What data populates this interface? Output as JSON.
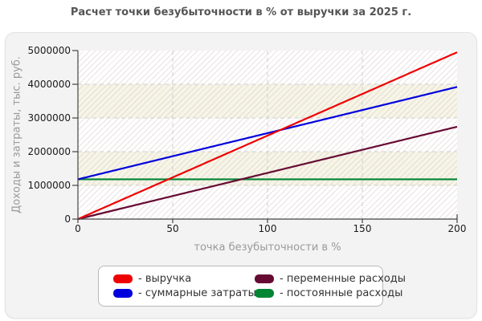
{
  "page": {
    "title": "Расчет точки безубыточности в % от выручки за 2025 г."
  },
  "colors": {
    "revenue": "#ee0000",
    "total_costs": "#0000dd",
    "variable_costs": "#660a33",
    "fixed_costs": "#008533",
    "gridline": "#cfcfcf",
    "axis": "#444444",
    "panel_bg": "#f3f3f3",
    "band_cream": "#f6f5e6",
    "title_text": "#555555",
    "axis_title_text": "#9a9a9a"
  },
  "chart_data": {
    "type": "line",
    "title": "Расчет точки безубыточности в % от выручки за 2025 г.",
    "xlabel": "точка безубыточности в %",
    "ylabel": "Доходы и затраты, тыс. руб.",
    "xlim": [
      0,
      200
    ],
    "ylim": [
      0,
      5000000
    ],
    "x_ticks": [
      0,
      50,
      100,
      150,
      200
    ],
    "y_ticks": [
      0,
      1000000,
      2000000,
      3000000,
      4000000,
      5000000
    ],
    "grid": "dashed",
    "legend_position": "bottom",
    "plot_bands_y": [
      [
        1000000,
        2000000
      ],
      [
        3000000,
        4000000
      ]
    ],
    "series": [
      {
        "name": "выручка",
        "legend_label": "- выручка",
        "color": "#ee0000",
        "x": [
          0,
          200
        ],
        "y": [
          0,
          4950000
        ]
      },
      {
        "name": "суммарные затраты",
        "legend_label": "- суммарные затраты",
        "color": "#0000dd",
        "x": [
          0,
          200
        ],
        "y": [
          1180000,
          3920000
        ]
      },
      {
        "name": "переменные расходы",
        "legend_label": "- переменные расходы",
        "color": "#660a33",
        "x": [
          0,
          200
        ],
        "y": [
          0,
          2740000
        ]
      },
      {
        "name": "постоянные расходы",
        "legend_label": "- постоянные расходы",
        "color": "#008533",
        "x": [
          0,
          200
        ],
        "y": [
          1180000,
          1180000
        ]
      }
    ]
  }
}
